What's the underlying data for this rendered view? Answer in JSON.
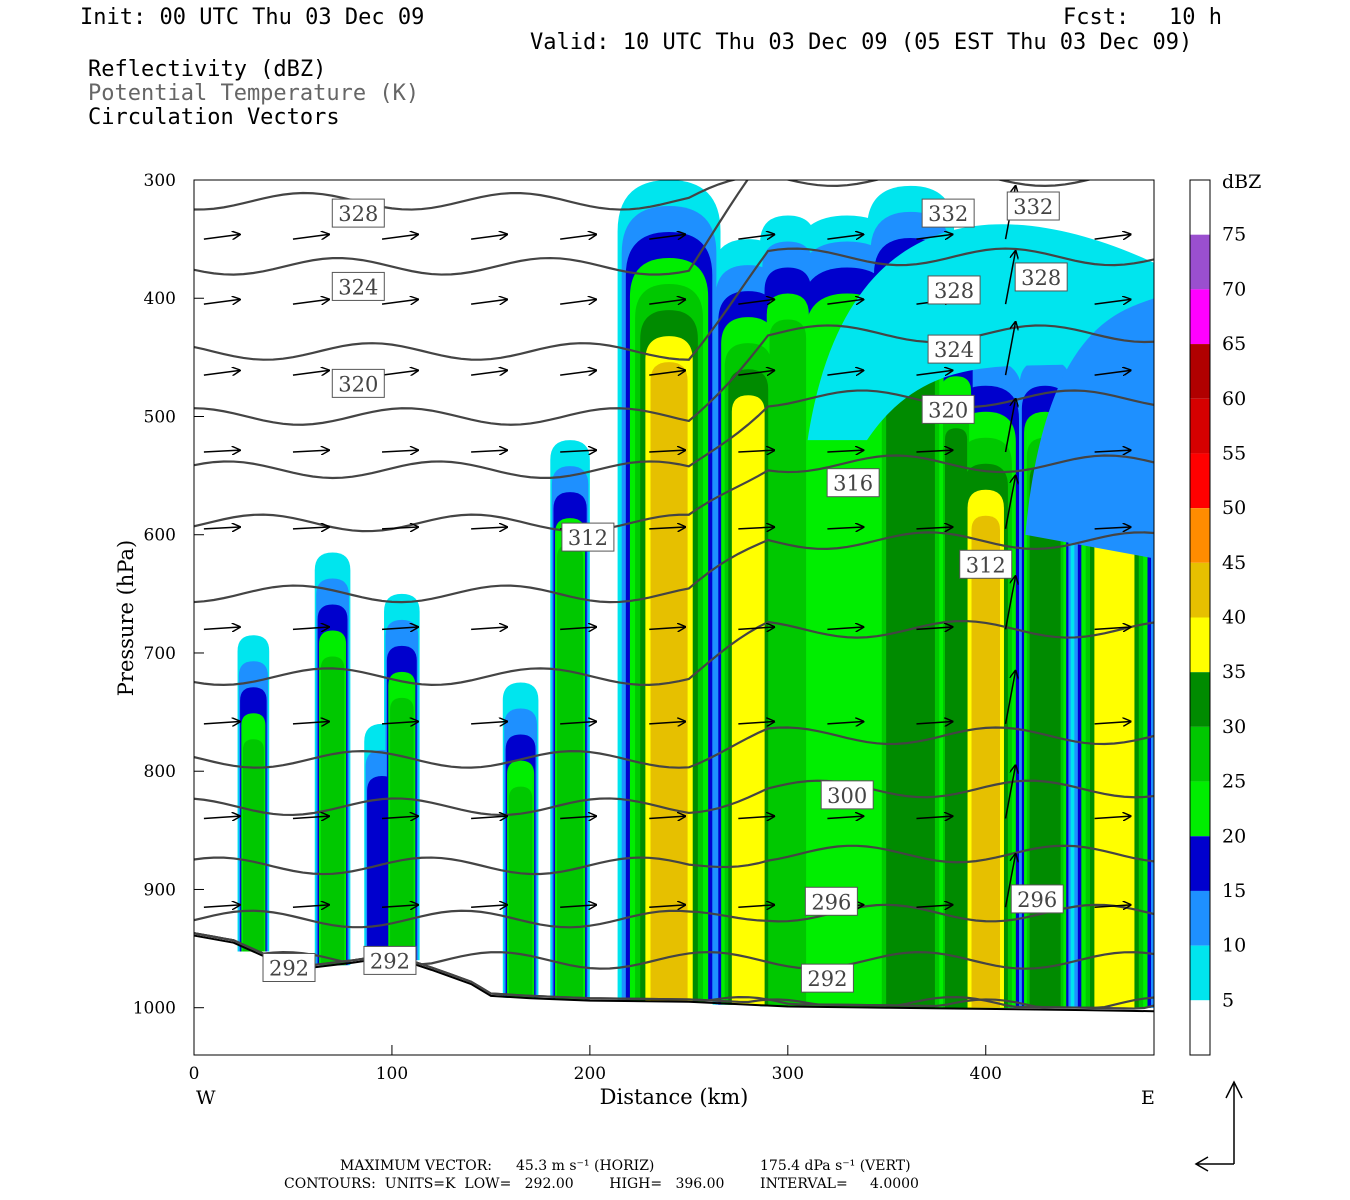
{
  "header": {
    "init": "Init: 00 UTC Thu 03 Dec 09",
    "fcst": "Fcst:   10 h",
    "valid": "Valid: 10 UTC Thu 03 Dec 09 (05 EST Thu 03 Dec 09)",
    "fields": [
      "Reflectivity (dBZ)",
      "Potential Temperature (K)",
      "Circulation Vectors"
    ]
  },
  "footer": {
    "max_vector_label": "MAXIMUM VECTOR:",
    "max_horiz": "45.3 m s⁻¹ (HORIZ)",
    "max_vert": "175.4 dPa s⁻¹ (VERT)",
    "contours": "CONTOURS:  UNITS=K  LOW=   292.00        HIGH=   396.00        INTERVAL=     4.0000"
  },
  "chart_data": {
    "type": "heatmap",
    "xlabel": "Distance (km)",
    "ylabel": "Pressure (hPa)",
    "x_ticks": [
      0,
      100,
      200,
      300,
      400
    ],
    "y_ticks": [
      300,
      400,
      500,
      600,
      700,
      800,
      900,
      1000
    ],
    "xlim": [
      0,
      485
    ],
    "ylim": [
      1040,
      300
    ],
    "x_end_labels": [
      "W",
      "E"
    ],
    "colorbar": {
      "unit": "dBZ",
      "levels": [
        5,
        10,
        15,
        20,
        25,
        30,
        35,
        40,
        45,
        50,
        55,
        60,
        65,
        70,
        75
      ],
      "colors": [
        "#ffffff",
        "#00e5ee",
        "#1e90ff",
        "#0000cd",
        "#00ee00",
        "#00c800",
        "#008b00",
        "#ffff00",
        "#e6c000",
        "#ff8c00",
        "#ff0000",
        "#d60000",
        "#b00000",
        "#ff00ff",
        "#9a4fcf",
        "#ffffff"
      ]
    },
    "theta_contour_labels": [
      {
        "value": "328",
        "x": 83,
        "p": 328
      },
      {
        "value": "324",
        "x": 83,
        "p": 390
      },
      {
        "value": "320",
        "x": 83,
        "p": 472
      },
      {
        "value": "312",
        "x": 199,
        "p": 602
      },
      {
        "value": "316",
        "x": 333,
        "p": 556
      },
      {
        "value": "332",
        "x": 381,
        "p": 328
      },
      {
        "value": "332",
        "x": 424,
        "p": 322
      },
      {
        "value": "328",
        "x": 384,
        "p": 393
      },
      {
        "value": "328",
        "x": 428,
        "p": 382
      },
      {
        "value": "324",
        "x": 384,
        "p": 443
      },
      {
        "value": "320",
        "x": 381,
        "p": 494
      },
      {
        "value": "312",
        "x": 400,
        "p": 625
      },
      {
        "value": "300",
        "x": 330,
        "p": 820
      },
      {
        "value": "296",
        "x": 322,
        "p": 910
      },
      {
        "value": "296",
        "x": 426,
        "p": 908
      },
      {
        "value": "292",
        "x": 320,
        "p": 975
      },
      {
        "value": "292",
        "x": 48,
        "p": 966
      },
      {
        "value": "292",
        "x": 99,
        "p": 960
      }
    ],
    "max_vector_horiz": 45.3,
    "max_vector_vert": 175.4,
    "contour_low": 292.0,
    "contour_high": 396.0,
    "contour_interval": 4.0
  }
}
